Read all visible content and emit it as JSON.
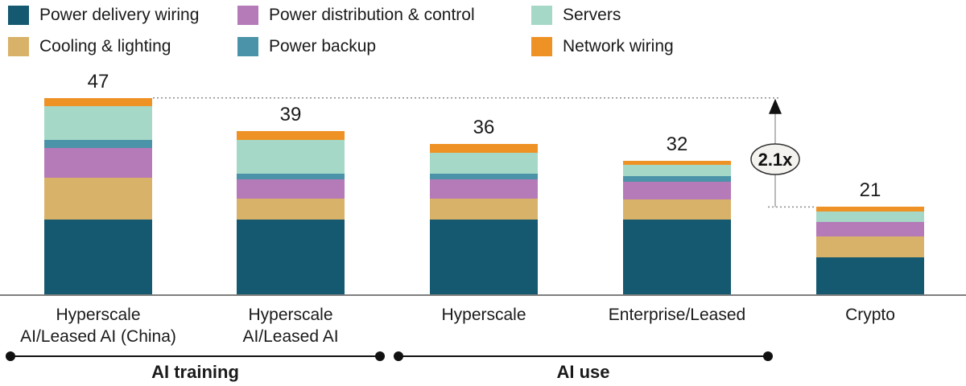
{
  "legend": {
    "rows": [
      [
        {
          "label": "Power delivery wiring",
          "color": "#14596f"
        },
        {
          "label": "Power distribution & control",
          "color": "#b57ab8"
        },
        {
          "label": "Servers",
          "color": "#a5d8c6"
        }
      ],
      [
        {
          "label": "Cooling & lighting",
          "color": "#d9b269"
        },
        {
          "label": "Power backup",
          "color": "#4a93a8"
        },
        {
          "label": "Network wiring",
          "color": "#ef9226"
        }
      ]
    ]
  },
  "chart_data": {
    "type": "bar",
    "stacked": true,
    "grid": false,
    "legend_position": "top",
    "ylim": [
      0,
      50
    ],
    "categories": [
      [
        "Hyperscale",
        "AI/Leased AI (China)"
      ],
      [
        "Hyperscale",
        "AI/Leased AI"
      ],
      [
        "Hyperscale"
      ],
      [
        "Enterprise/Leased"
      ],
      [
        "Crypto"
      ]
    ],
    "totals": [
      47,
      39,
      36,
      32,
      21
    ],
    "series": [
      {
        "name": "Power delivery wiring",
        "color": "#14596f",
        "values": [
          18,
          18,
          18,
          18,
          9
        ]
      },
      {
        "name": "Cooling & lighting",
        "color": "#d9b269",
        "values": [
          10,
          5,
          5,
          4.8,
          5
        ]
      },
      {
        "name": "Power distribution & control",
        "color": "#b57ab8",
        "values": [
          7,
          4.5,
          4.5,
          4.2,
          3.5
        ]
      },
      {
        "name": "Power backup",
        "color": "#4a93a8",
        "values": [
          2,
          1.5,
          1.5,
          1.3,
          0
        ]
      },
      {
        "name": "Servers",
        "color": "#a5d8c6",
        "values": [
          8,
          8,
          5,
          2.7,
          2.5
        ]
      },
      {
        "name": "Network wiring",
        "color": "#ef9226",
        "values": [
          2,
          2,
          2,
          1,
          1
        ]
      }
    ],
    "annotation": {
      "label": "2.1x"
    },
    "groups": [
      {
        "label": "AI training",
        "bars": [
          0,
          1
        ]
      },
      {
        "label": "AI use",
        "bars": [
          2,
          3
        ]
      }
    ]
  }
}
